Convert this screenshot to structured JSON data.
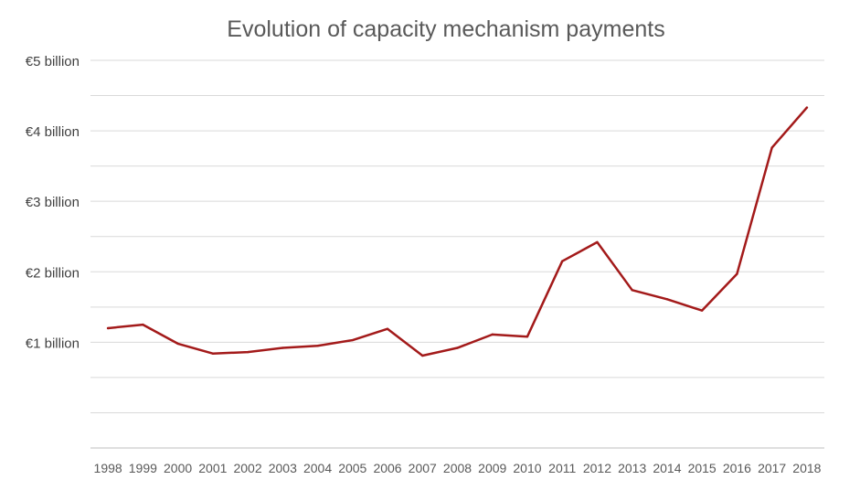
{
  "chart_data": {
    "type": "line",
    "title": "Evolution of capacity mechanism payments",
    "xlabel": "",
    "ylabel": "",
    "categories": [
      "1998",
      "1999",
      "2000",
      "2001",
      "2002",
      "2003",
      "2004",
      "2005",
      "2006",
      "2007",
      "2008",
      "2009",
      "2010",
      "2011",
      "2012",
      "2013",
      "2014",
      "2015",
      "2016",
      "2017",
      "2018"
    ],
    "series": [
      {
        "values": [
          1.2,
          1.25,
          0.98,
          0.84,
          0.86,
          0.92,
          0.95,
          1.03,
          1.19,
          0.81,
          0.92,
          1.11,
          1.08,
          2.15,
          2.42,
          1.74,
          1.61,
          1.45,
          1.97,
          3.76,
          4.33
        ],
        "color": "#a31a1a"
      }
    ],
    "ylim": [
      -0.5,
      5
    ],
    "yticks": [
      {
        "value": 5,
        "label": "€5 billion"
      },
      {
        "value": 4,
        "label": "€4 billion"
      },
      {
        "value": 3,
        "label": "€3 billion"
      },
      {
        "value": 2,
        "label": "€2 billion"
      },
      {
        "value": 1,
        "label": "€1 billion"
      }
    ],
    "gridlines": [
      5,
      4.5,
      4,
      3.5,
      3,
      2.5,
      2,
      1.5,
      1,
      0.5,
      0
    ],
    "grid": true,
    "legend": "none"
  }
}
